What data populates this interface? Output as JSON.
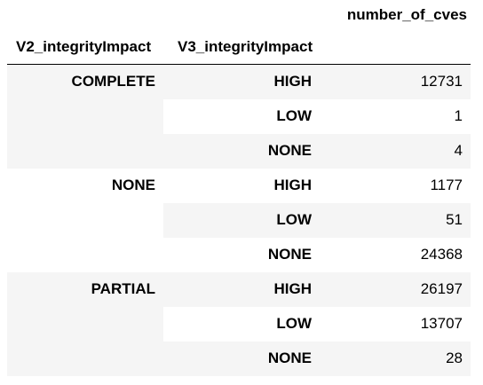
{
  "headers": {
    "metric": "number_of_cves",
    "index_v2": "V2_integrityImpact",
    "index_v3": "V3_integrityImpact"
  },
  "groups": [
    {
      "v2": "COMPLETE",
      "rows": [
        {
          "v3": "HIGH",
          "count": "12731"
        },
        {
          "v3": "LOW",
          "count": "1"
        },
        {
          "v3": "NONE",
          "count": "4"
        }
      ]
    },
    {
      "v2": "NONE",
      "rows": [
        {
          "v3": "HIGH",
          "count": "1177"
        },
        {
          "v3": "LOW",
          "count": "51"
        },
        {
          "v3": "NONE",
          "count": "24368"
        }
      ]
    },
    {
      "v2": "PARTIAL",
      "rows": [
        {
          "v3": "HIGH",
          "count": "26197"
        },
        {
          "v3": "LOW",
          "count": "13707"
        },
        {
          "v3": "NONE",
          "count": "28"
        }
      ]
    }
  ]
}
